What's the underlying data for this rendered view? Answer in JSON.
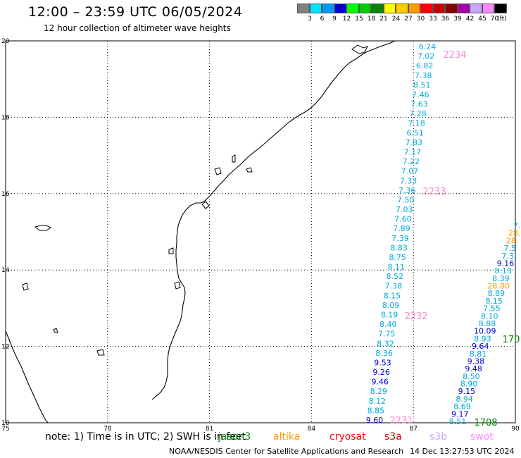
{
  "title": "12:00 – 23:59 UTC 06/05/2024",
  "subtitle": "12 hour collection of altimeter wave heights",
  "legend": {
    "unit": "(ft)",
    "items": [
      {
        "label": "3",
        "color": "#808080"
      },
      {
        "label": "6",
        "color": "#00e5ff"
      },
      {
        "label": "9",
        "color": "#0099ff"
      },
      {
        "label": "12",
        "color": "#0000dd"
      },
      {
        "label": "15",
        "color": "#00ff00"
      },
      {
        "label": "18",
        "color": "#00cc00"
      },
      {
        "label": "21",
        "color": "#008800"
      },
      {
        "label": "24",
        "color": "#ffff00"
      },
      {
        "label": "27",
        "color": "#ffcc00"
      },
      {
        "label": "30",
        "color": "#ff9900"
      },
      {
        "label": "33",
        "color": "#ff0000"
      },
      {
        "label": "36",
        "color": "#cc0000"
      },
      {
        "label": "39",
        "color": "#880000"
      },
      {
        "label": "42",
        "color": "#aa00aa"
      },
      {
        "label": "45",
        "color": "#c8a8ff"
      },
      {
        "label": "70",
        "color": "#ff88ff"
      },
      {
        "label": "",
        "color": "#000000"
      }
    ]
  },
  "map": {
    "lat_labels": [
      "20",
      "18",
      "16",
      "14",
      "12",
      "10"
    ],
    "lon_labels": [
      "75",
      "78",
      "81",
      "84",
      "87",
      "90"
    ]
  },
  "tracks": [
    {
      "id": "2234",
      "color": "#ff88cc",
      "pass_x": 646,
      "pass_y": 77
    },
    {
      "id": "2233",
      "color": "#ff88cc",
      "pass_x": 617,
      "pass_y": 271
    },
    {
      "id": "2232",
      "color": "#ff88cc",
      "pass_x": 591,
      "pass_y": 448
    },
    {
      "id": "2231",
      "color": "#ff88cc",
      "pass_x": 570,
      "pass_y": 596
    },
    {
      "id": "1708",
      "color": "#008800",
      "pass_x": 690,
      "pass_y": 599
    },
    {
      "id": "170",
      "color": "#008800",
      "pass_x": 726,
      "pass_y": 481
    }
  ],
  "track_a": {
    "values": [
      "6.24",
      "7.02",
      "6.82",
      "7.38",
      "8.51",
      "7.46",
      "7.63",
      "7.28",
      "7.18",
      "6.51",
      "7.83",
      "7.17",
      "7.22",
      "7.07",
      "7.33",
      "7.36",
      "7.50",
      "7.03",
      "7.60",
      "7.89",
      "7.39",
      "8.83",
      "8.75",
      "8.11",
      "8.52",
      "7.38",
      "8.15",
      "8.09",
      "8.19",
      "8.40",
      "7.75",
      "8.32",
      "8.36",
      "9.53",
      "9.26",
      "9.46",
      "8.29",
      "8.12",
      "8.85",
      "9.60"
    ]
  },
  "track_b": {
    "values": [
      "7.",
      "28.",
      "28.",
      "7.5",
      "7.3",
      "9.16",
      "8.13",
      "8.39",
      "28.80",
      "8.89",
      "8.15",
      "7.55",
      "8.10",
      "8.88",
      "10.09",
      "8.93",
      "9.64",
      "8.81",
      "9.38",
      "9.48",
      "8.50",
      "8.90",
      "9.15",
      "8.94",
      "8.69",
      "9.17",
      "8.51"
    ]
  },
  "note": "note:  1) Time is in UTC;  2) SWH is in feet",
  "satellites": [
    {
      "name": "jason3",
      "color": "#008800"
    },
    {
      "name": "altika",
      "color": "#ff9900"
    },
    {
      "name": "cryosat",
      "color": "#ff0000"
    },
    {
      "name": "s3a",
      "color": "#cc0000"
    },
    {
      "name": "s3b",
      "color": "#c8a8ff"
    },
    {
      "name": "swot",
      "color": "#ff88ff"
    }
  ],
  "credit": "NOAA/NESDIS Center for Satellite Applications and Research",
  "stamp": "14 Dec 13:27:53 UTC 2024"
}
